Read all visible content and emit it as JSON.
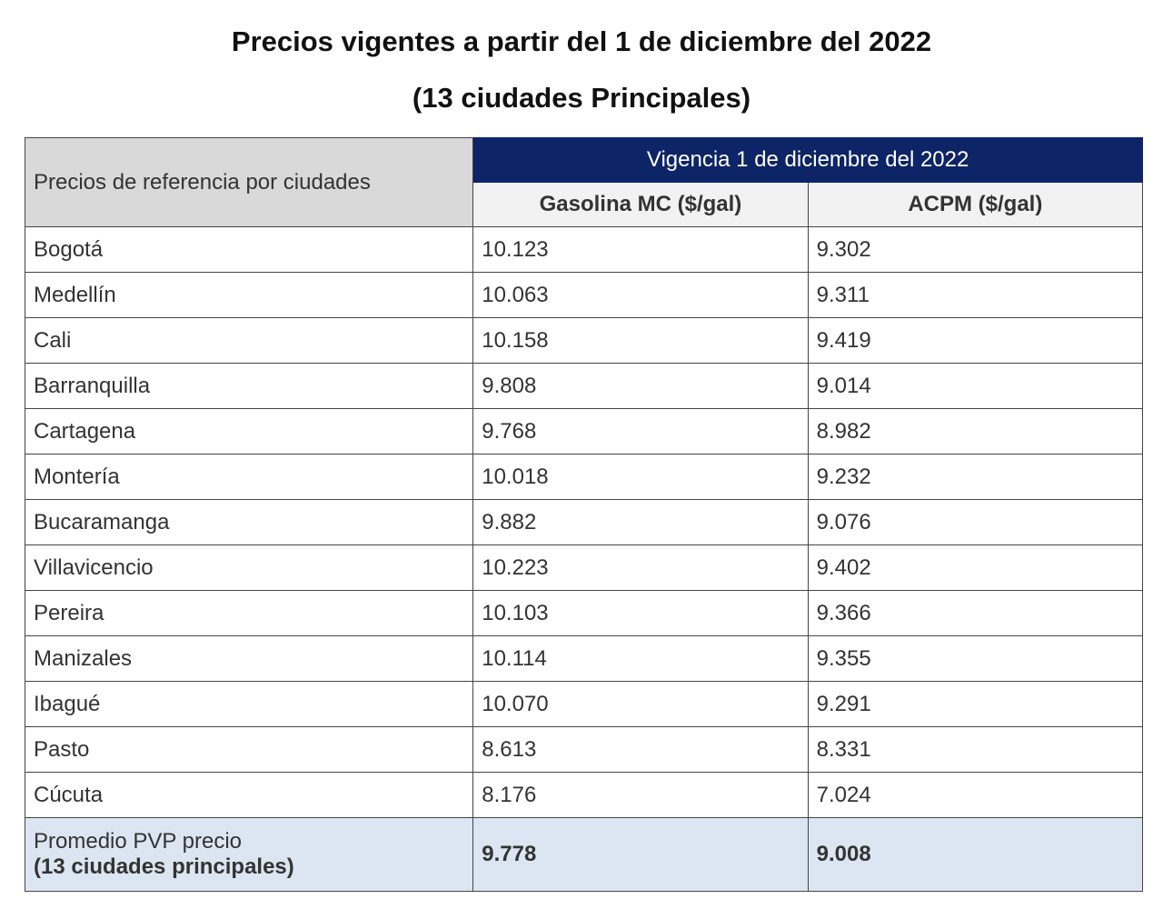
{
  "title": "Precios vigentes a partir del 1 de diciembre del 2022",
  "subtitle": "(13 ciudades Principales)",
  "table": {
    "corner_header": "Precios de referencia por ciudades",
    "group_header": "Vigencia 1 de diciembre del 2022",
    "column_headers": [
      "Gasolina MC ($/gal)",
      "ACPM ($/gal)"
    ],
    "rows": [
      [
        "Bogotá",
        "10.123",
        "9.302"
      ],
      [
        "Medellín",
        "10.063",
        "9.311"
      ],
      [
        "Cali",
        "10.158",
        "9.419"
      ],
      [
        "Barranquilla",
        "9.808",
        "9.014"
      ],
      [
        "Cartagena",
        "9.768",
        "8.982"
      ],
      [
        "Montería",
        "10.018",
        "9.232"
      ],
      [
        "Bucaramanga",
        "9.882",
        "9.076"
      ],
      [
        "Villavicencio",
        "10.223",
        "9.402"
      ],
      [
        "Pereira",
        "10.103",
        "9.366"
      ],
      [
        "Manizales",
        "10.114",
        "9.355"
      ],
      [
        "Ibagué",
        "10.070",
        "9.291"
      ],
      [
        "Pasto",
        "8.613",
        "8.331"
      ],
      [
        "Cúcuta",
        "8.176",
        "7.024"
      ]
    ],
    "footer": {
      "label_line1": "Promedio PVP precio",
      "label_line2": "(13 ciudades principales)",
      "values": [
        "9.778",
        "9.008"
      ]
    }
  }
}
